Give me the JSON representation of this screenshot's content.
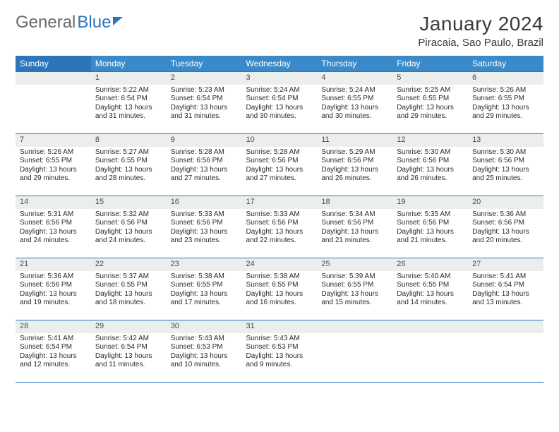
{
  "logo": {
    "part1": "General",
    "part2": "Blue"
  },
  "title": "January 2024",
  "location": "Piracaia, Sao Paulo, Brazil",
  "colors": {
    "header_bg": "#3a8ac9",
    "header_bg_first": "#2d75bb",
    "border": "#2d75bb",
    "daynum_bg": "#eceeee",
    "text": "#212121"
  },
  "weekdays": [
    "Sunday",
    "Monday",
    "Tuesday",
    "Wednesday",
    "Thursday",
    "Friday",
    "Saturday"
  ],
  "weeks": [
    [
      null,
      {
        "n": "1",
        "sr": "5:22 AM",
        "ss": "6:54 PM",
        "dl": "13 hours and 31 minutes."
      },
      {
        "n": "2",
        "sr": "5:23 AM",
        "ss": "6:54 PM",
        "dl": "13 hours and 31 minutes."
      },
      {
        "n": "3",
        "sr": "5:24 AM",
        "ss": "6:54 PM",
        "dl": "13 hours and 30 minutes."
      },
      {
        "n": "4",
        "sr": "5:24 AM",
        "ss": "6:55 PM",
        "dl": "13 hours and 30 minutes."
      },
      {
        "n": "5",
        "sr": "5:25 AM",
        "ss": "6:55 PM",
        "dl": "13 hours and 29 minutes."
      },
      {
        "n": "6",
        "sr": "5:26 AM",
        "ss": "6:55 PM",
        "dl": "13 hours and 29 minutes."
      }
    ],
    [
      {
        "n": "7",
        "sr": "5:26 AM",
        "ss": "6:55 PM",
        "dl": "13 hours and 29 minutes."
      },
      {
        "n": "8",
        "sr": "5:27 AM",
        "ss": "6:55 PM",
        "dl": "13 hours and 28 minutes."
      },
      {
        "n": "9",
        "sr": "5:28 AM",
        "ss": "6:56 PM",
        "dl": "13 hours and 27 minutes."
      },
      {
        "n": "10",
        "sr": "5:28 AM",
        "ss": "6:56 PM",
        "dl": "13 hours and 27 minutes."
      },
      {
        "n": "11",
        "sr": "5:29 AM",
        "ss": "6:56 PM",
        "dl": "13 hours and 26 minutes."
      },
      {
        "n": "12",
        "sr": "5:30 AM",
        "ss": "6:56 PM",
        "dl": "13 hours and 26 minutes."
      },
      {
        "n": "13",
        "sr": "5:30 AM",
        "ss": "6:56 PM",
        "dl": "13 hours and 25 minutes."
      }
    ],
    [
      {
        "n": "14",
        "sr": "5:31 AM",
        "ss": "6:56 PM",
        "dl": "13 hours and 24 minutes."
      },
      {
        "n": "15",
        "sr": "5:32 AM",
        "ss": "6:56 PM",
        "dl": "13 hours and 24 minutes."
      },
      {
        "n": "16",
        "sr": "5:33 AM",
        "ss": "6:56 PM",
        "dl": "13 hours and 23 minutes."
      },
      {
        "n": "17",
        "sr": "5:33 AM",
        "ss": "6:56 PM",
        "dl": "13 hours and 22 minutes."
      },
      {
        "n": "18",
        "sr": "5:34 AM",
        "ss": "6:56 PM",
        "dl": "13 hours and 21 minutes."
      },
      {
        "n": "19",
        "sr": "5:35 AM",
        "ss": "6:56 PM",
        "dl": "13 hours and 21 minutes."
      },
      {
        "n": "20",
        "sr": "5:36 AM",
        "ss": "6:56 PM",
        "dl": "13 hours and 20 minutes."
      }
    ],
    [
      {
        "n": "21",
        "sr": "5:36 AM",
        "ss": "6:56 PM",
        "dl": "13 hours and 19 minutes."
      },
      {
        "n": "22",
        "sr": "5:37 AM",
        "ss": "6:55 PM",
        "dl": "13 hours and 18 minutes."
      },
      {
        "n": "23",
        "sr": "5:38 AM",
        "ss": "6:55 PM",
        "dl": "13 hours and 17 minutes."
      },
      {
        "n": "24",
        "sr": "5:38 AM",
        "ss": "6:55 PM",
        "dl": "13 hours and 16 minutes."
      },
      {
        "n": "25",
        "sr": "5:39 AM",
        "ss": "6:55 PM",
        "dl": "13 hours and 15 minutes."
      },
      {
        "n": "26",
        "sr": "5:40 AM",
        "ss": "6:55 PM",
        "dl": "13 hours and 14 minutes."
      },
      {
        "n": "27",
        "sr": "5:41 AM",
        "ss": "6:54 PM",
        "dl": "13 hours and 13 minutes."
      }
    ],
    [
      {
        "n": "28",
        "sr": "5:41 AM",
        "ss": "6:54 PM",
        "dl": "13 hours and 12 minutes."
      },
      {
        "n": "29",
        "sr": "5:42 AM",
        "ss": "6:54 PM",
        "dl": "13 hours and 11 minutes."
      },
      {
        "n": "30",
        "sr": "5:43 AM",
        "ss": "6:53 PM",
        "dl": "13 hours and 10 minutes."
      },
      {
        "n": "31",
        "sr": "5:43 AM",
        "ss": "6:53 PM",
        "dl": "13 hours and 9 minutes."
      },
      null,
      null,
      null
    ]
  ],
  "labels": {
    "sunrise": "Sunrise:",
    "sunset": "Sunset:",
    "daylight": "Daylight:"
  }
}
